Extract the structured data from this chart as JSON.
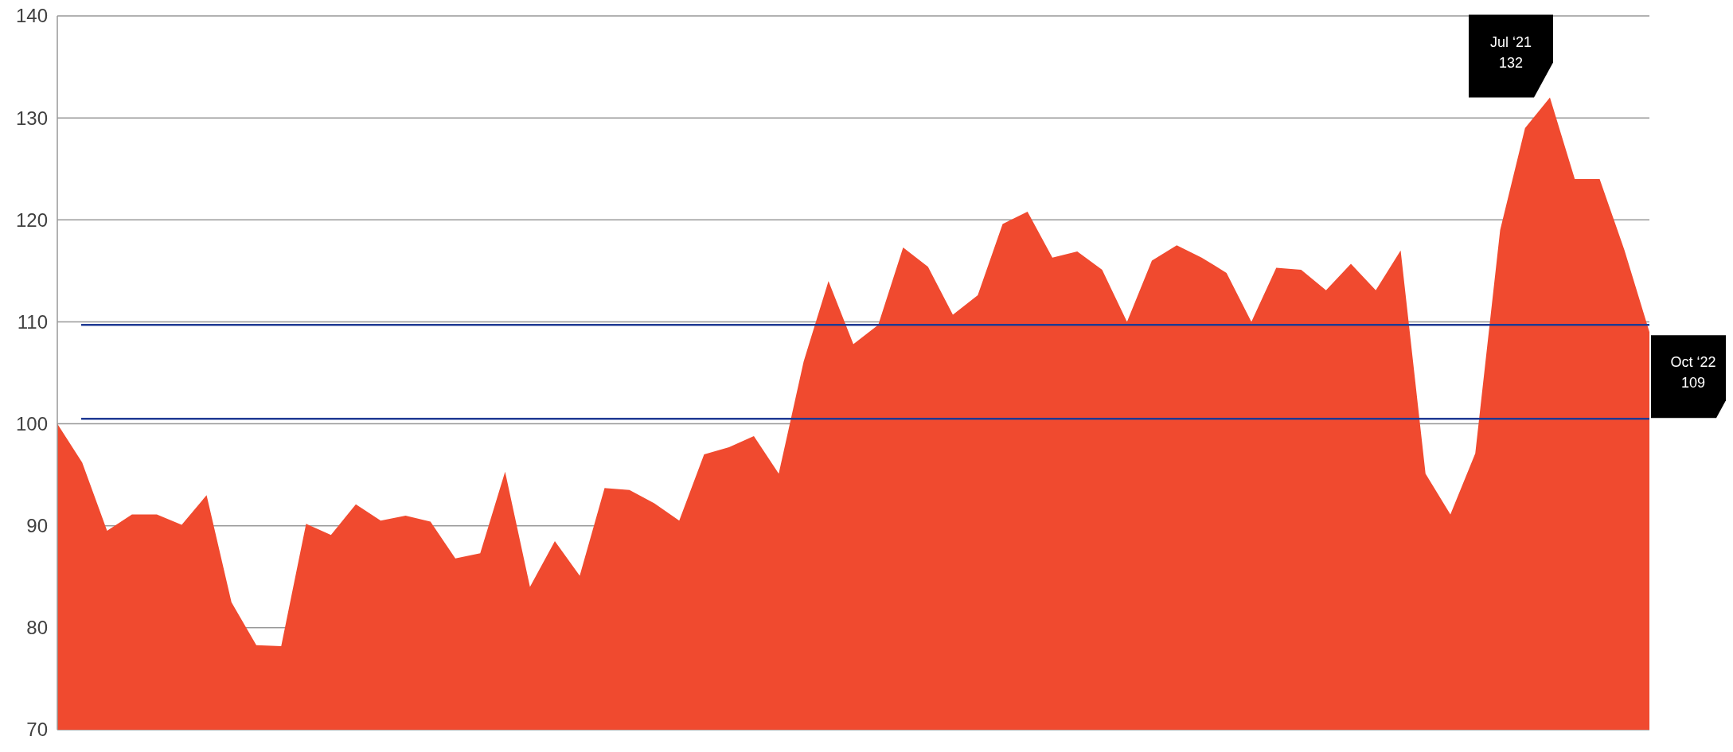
{
  "chart_data": {
    "type": "area",
    "categories": [
      null,
      null,
      null,
      null,
      null,
      null,
      null,
      null,
      null,
      null,
      null,
      null,
      null,
      null,
      null,
      null,
      null,
      null,
      null,
      null,
      null,
      null,
      null,
      null,
      null,
      null,
      null,
      null,
      null,
      null,
      null,
      null,
      null,
      null,
      null,
      null,
      null,
      null,
      null,
      null,
      null,
      null,
      null,
      null,
      null,
      null,
      null,
      null,
      null,
      null,
      null,
      null,
      null,
      null,
      null,
      null,
      null,
      null,
      null,
      null,
      null,
      null,
      null,
      null,
      null
    ],
    "series": [
      {
        "color": "#f04a2f",
        "values": [
          100.0,
          96.2,
          89.5,
          91.1,
          91.1,
          90.1,
          93.0,
          82.5,
          78.3,
          78.2,
          90.2,
          89.1,
          92.1,
          90.5,
          91.0,
          90.4,
          86.8,
          87.3,
          95.3,
          84.0,
          88.5,
          85.1,
          93.7,
          93.5,
          92.2,
          90.5,
          97.0,
          97.7,
          98.8,
          95.1,
          106.1,
          114.0,
          107.8,
          109.7,
          117.3,
          115.4,
          110.7,
          112.6,
          119.6,
          120.8,
          116.3,
          116.9,
          115.1,
          110.0,
          116.0,
          117.5,
          116.3,
          114.8,
          110.0,
          115.3,
          115.1,
          113.1,
          115.7,
          113.1,
          117.0,
          95.1,
          91.1,
          97.1,
          119.0,
          129.0,
          132,
          124.0,
          124.0,
          117.0,
          109
        ]
      }
    ],
    "ylim": [
      70,
      140
    ],
    "yticks": [
      70,
      80,
      90,
      100,
      110,
      120,
      130,
      140
    ],
    "grid": "y",
    "ref_lines": [
      {
        "axis": "y",
        "value": 109.7,
        "color": "#1f3a93"
      },
      {
        "axis": "y",
        "value": 100.5,
        "color": "#1f3a93"
      }
    ],
    "annotations": [
      "Jul ‘21\n132",
      "Oct ‘22\n109"
    ]
  }
}
